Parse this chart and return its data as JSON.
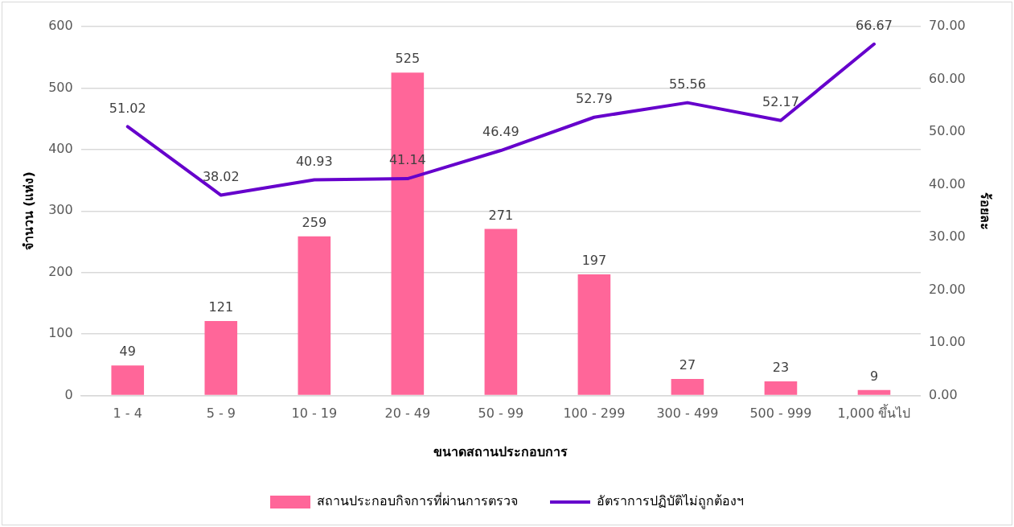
{
  "chart_data": {
    "type": "bar",
    "xlabel": "ขนาดสถานประกอบการ",
    "ylabel": "จำนวน (แห่ง)",
    "y2label": "ร้อยละ",
    "categories": [
      "1 - 4",
      "5 - 9",
      "10 - 19",
      "20 - 49",
      "50 - 99",
      "100 - 299",
      "300 - 499",
      "500 - 999",
      "1,000 ขึ้นไป"
    ],
    "series": [
      {
        "name": "สถานประกอบกิจการที่ผ่านการตรวจ",
        "color": "#ff6699",
        "values": [
          49,
          121,
          259,
          525,
          271,
          197,
          27,
          23,
          9
        ]
      },
      {
        "name": "อัตราการปฏิบัติไม่ถูกต้องฯ",
        "type": "line",
        "axis": "y2",
        "color": "#6600cc",
        "marker": "none",
        "values": [
          51.02,
          38.02,
          40.93,
          41.14,
          46.49,
          52.79,
          55.56,
          52.17,
          66.67
        ]
      }
    ],
    "ylim": [
      0,
      600
    ],
    "yticks": [
      0,
      100,
      200,
      300,
      400,
      500,
      600
    ],
    "y2lim": [
      0,
      70
    ],
    "y2ticks": [
      {
        "value": 0,
        "label": "0.00"
      },
      {
        "value": 10,
        "label": "10.00"
      },
      {
        "value": 20,
        "label": "20.00"
      },
      {
        "value": 30,
        "label": "30.00"
      },
      {
        "value": 40,
        "label": "40.00"
      },
      {
        "value": 50,
        "label": "50.00"
      },
      {
        "value": 60,
        "label": "60.00"
      },
      {
        "value": 70,
        "label": "70.00"
      }
    ],
    "grid": "y",
    "legend": "bottom",
    "data_labels": true
  }
}
